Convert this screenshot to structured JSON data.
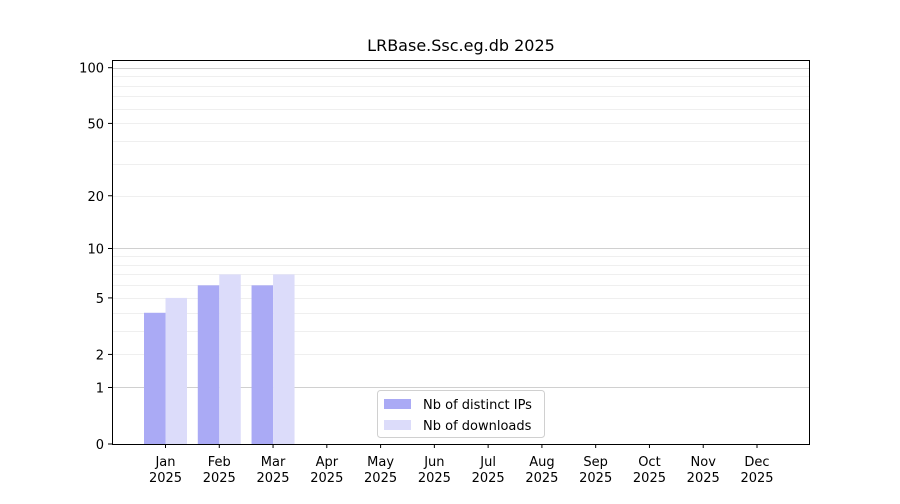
{
  "chart_data": {
    "type": "bar",
    "title": "LRBase.Ssc.eg.db 2025",
    "xlabel": "",
    "ylabel": "",
    "y_scale": "log(1+y)",
    "y_ticks": [
      0,
      1,
      2,
      5,
      10,
      20,
      50,
      100
    ],
    "ylim": [
      0,
      110
    ],
    "grid": true,
    "legend_position": "bottom-center",
    "categories": [
      "Jan\n2025",
      "Feb\n2025",
      "Mar\n2025",
      "Apr\n2025",
      "May\n2025",
      "Jun\n2025",
      "Jul\n2025",
      "Aug\n2025",
      "Sep\n2025",
      "Oct\n2025",
      "Nov\n2025",
      "Dec\n2025"
    ],
    "series": [
      {
        "name": "Nb of distinct IPs",
        "color": "#aaaaf5",
        "values": [
          4,
          6,
          6,
          0,
          0,
          0,
          0,
          0,
          0,
          0,
          0,
          0
        ]
      },
      {
        "name": "Nb of downloads",
        "color": "#dcdcfa",
        "values": [
          5,
          7,
          7,
          0,
          0,
          0,
          0,
          0,
          0,
          0,
          0,
          0
        ]
      }
    ]
  }
}
